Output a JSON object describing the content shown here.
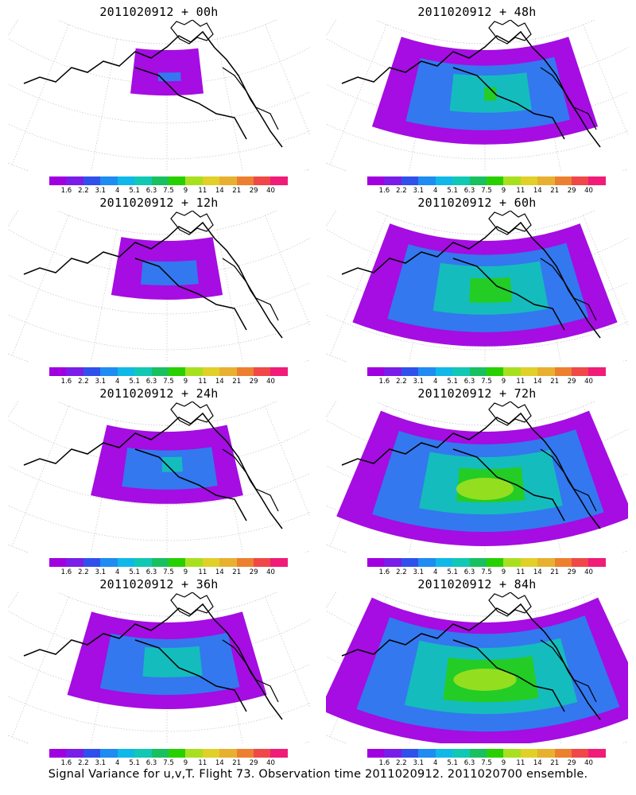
{
  "caption": "Signal Variance for u,v,T. Flight 73. Observation time 2011020912. 2011020700 ensemble.",
  "colorbar": {
    "labels": [
      "1.6",
      "2.2",
      "3.1",
      "4",
      "5.1",
      "6.3",
      "7.5",
      "9",
      "11",
      "14",
      "21",
      "29",
      "40"
    ],
    "colors": [
      "#a000e0",
      "#7a1de8",
      "#3050ec",
      "#1e8cf0",
      "#10b8e8",
      "#10c8b4",
      "#18c060",
      "#28d000",
      "#a8e020",
      "#e0d028",
      "#e8b030",
      "#ec8030",
      "#f04848",
      "#f01c78"
    ]
  },
  "panels": [
    {
      "title": "2011020912 + 00h",
      "coverage": 0.18
    },
    {
      "title": "2011020912 + 48h",
      "coverage": 0.62
    },
    {
      "title": "2011020912 + 12h",
      "coverage": 0.3
    },
    {
      "title": "2011020912 + 60h",
      "coverage": 0.72
    },
    {
      "title": "2011020912 + 24h",
      "coverage": 0.42
    },
    {
      "title": "2011020912 + 72h",
      "coverage": 0.8
    },
    {
      "title": "2011020912 + 36h",
      "coverage": 0.55
    },
    {
      "title": "2011020912 + 84h",
      "coverage": 0.88
    }
  ]
}
